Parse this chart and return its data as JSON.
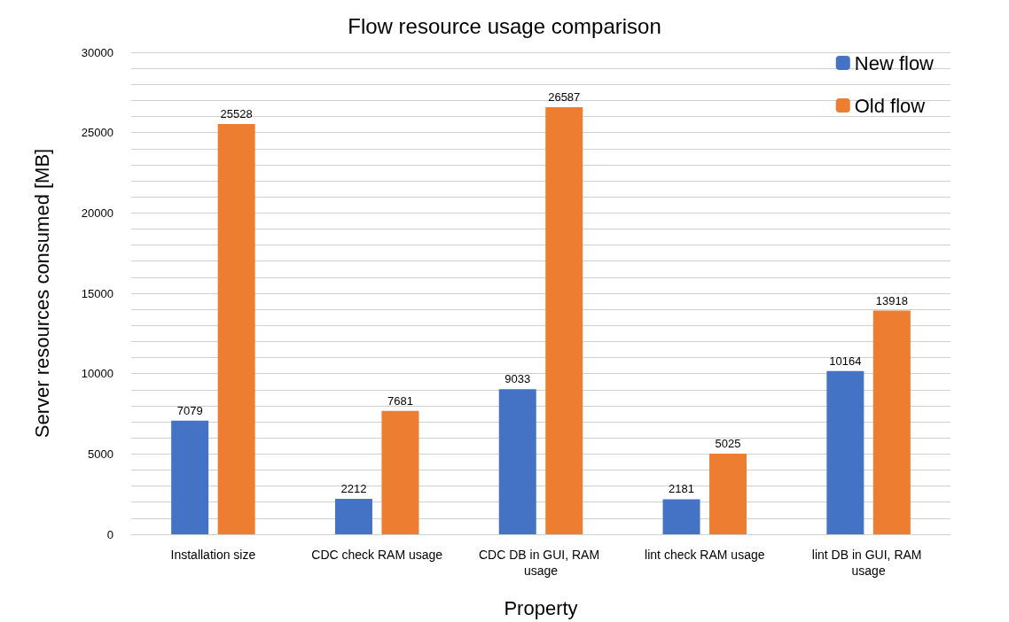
{
  "chart_data": {
    "type": "bar",
    "title": "Flow resource usage comparison",
    "xlabel": "Property",
    "ylabel": "Server resources consumed [MB]",
    "categories": [
      "Installation size",
      "CDC check RAM usage",
      "CDC DB in GUI, RAM usage",
      "lint check RAM usage",
      "lint DB in GUI, RAM usage"
    ],
    "series": [
      {
        "name": "New flow",
        "color": "#4472c4",
        "values": [
          7079,
          2212,
          9033,
          2181,
          10164
        ]
      },
      {
        "name": "Old flow",
        "color": "#ed7d31",
        "values": [
          25528,
          7681,
          26587,
          5025,
          13918
        ]
      }
    ],
    "ylim": [
      0,
      30000
    ],
    "yticks": [
      0,
      {
        "value": 1000,
        "label": null
      },
      {
        "value": 2000,
        "label": null
      },
      {
        "value": 3000,
        "label": null
      },
      {
        "value": 4000,
        "label": null
      },
      5000,
      {
        "value": 6000,
        "label": null
      },
      {
        "value": 7000,
        "label": null
      },
      {
        "value": 8000,
        "label": null
      },
      {
        "value": 9000,
        "label": null
      },
      10000,
      {
        "value": 11000,
        "label": null
      },
      {
        "value": 12000,
        "label": null
      },
      {
        "value": 13000,
        "label": null
      },
      {
        "value": 14000,
        "label": null
      },
      15000,
      {
        "value": 16000,
        "label": null
      },
      {
        "value": 17000,
        "label": null
      },
      {
        "value": 18000,
        "label": null
      },
      {
        "value": 19000,
        "label": null
      },
      20000,
      {
        "value": 21000,
        "label": null
      },
      {
        "value": 22000,
        "label": null
      },
      {
        "value": 23000,
        "label": null
      },
      {
        "value": 24000,
        "label": null
      },
      25000,
      {
        "value": 26000,
        "label": null
      },
      {
        "value": 27000,
        "label": null
      },
      {
        "value": 28000,
        "label": null
      },
      {
        "value": 29000,
        "label": null
      },
      30000
    ],
    "grid": "y",
    "legend": "top right",
    "data_labels": true
  }
}
